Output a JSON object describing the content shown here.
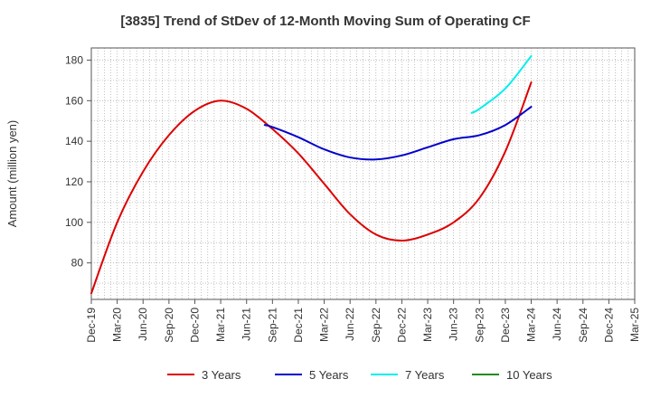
{
  "chart_data": {
    "type": "line",
    "title": "[3835]  Trend of StDev of 12-Month Moving Sum of Operating CF",
    "xlabel": "",
    "ylabel": "Amount (million yen)",
    "ylim": [
      62,
      186
    ],
    "yticks": [
      80,
      100,
      120,
      140,
      160,
      180
    ],
    "grid": true,
    "legend_position": "bottom",
    "categories": [
      "Dec-19",
      "Mar-20",
      "Jun-20",
      "Sep-20",
      "Dec-20",
      "Mar-21",
      "Jun-21",
      "Sep-21",
      "Dec-21",
      "Mar-22",
      "Jun-22",
      "Sep-22",
      "Dec-22",
      "Mar-23",
      "Jun-23",
      "Sep-23",
      "Dec-23",
      "Mar-24",
      "Jun-24",
      "Sep-24",
      "Dec-24",
      "Mar-25"
    ],
    "series": [
      {
        "name": "3 Years",
        "color": "#dd0000",
        "points": [
          [
            0,
            65
          ],
          [
            1,
            100
          ],
          [
            2,
            125
          ],
          [
            3,
            143
          ],
          [
            4,
            155
          ],
          [
            5,
            160
          ],
          [
            6,
            156
          ],
          [
            7,
            146
          ],
          [
            8,
            134
          ],
          [
            9,
            119
          ],
          [
            10,
            104
          ],
          [
            11,
            94
          ],
          [
            12,
            91
          ],
          [
            13,
            94
          ],
          [
            14,
            100
          ],
          [
            15,
            112
          ],
          [
            16,
            135
          ],
          [
            17,
            169
          ]
        ]
      },
      {
        "name": "5 Years",
        "color": "#0000cc",
        "points": [
          [
            6.7,
            148
          ],
          [
            7,
            147
          ],
          [
            8,
            142
          ],
          [
            9,
            136
          ],
          [
            10,
            132
          ],
          [
            11,
            131
          ],
          [
            12,
            133
          ],
          [
            13,
            137
          ],
          [
            14,
            141
          ],
          [
            15,
            143
          ],
          [
            16,
            148
          ],
          [
            17,
            157
          ]
        ]
      },
      {
        "name": "7 Years",
        "color": "#00eeee",
        "points": [
          [
            14.7,
            154
          ],
          [
            15,
            156
          ],
          [
            16,
            166
          ],
          [
            17,
            182
          ]
        ]
      },
      {
        "name": "10 Years",
        "color": "#228b22",
        "points": []
      }
    ]
  }
}
